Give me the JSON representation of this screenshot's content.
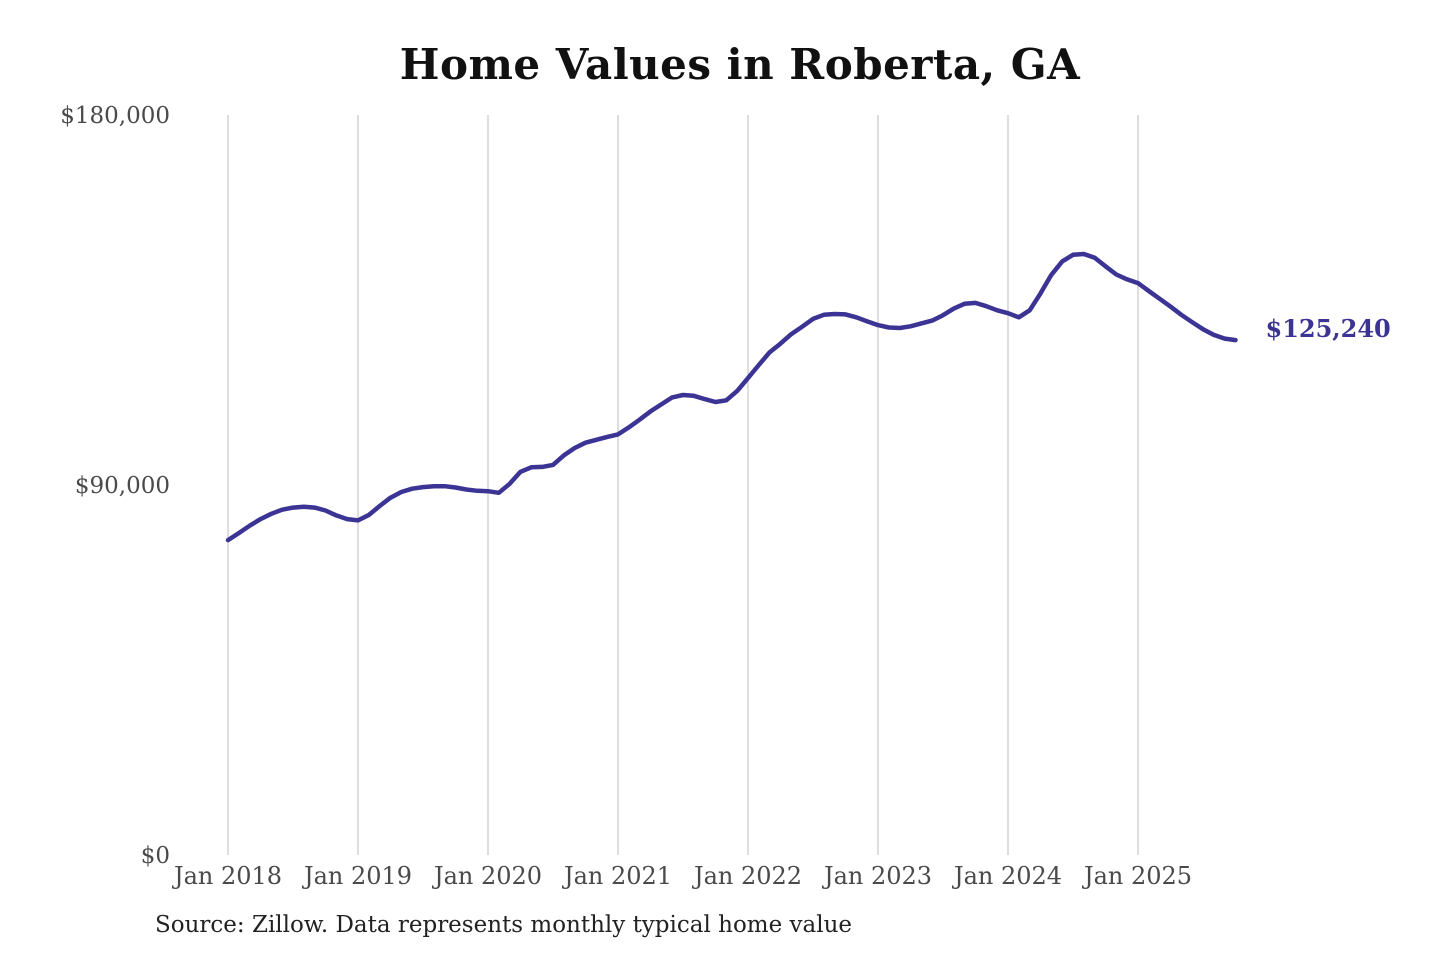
{
  "chart_data": {
    "type": "line",
    "title": "Home Values in Roberta, GA",
    "series_name": "Monthly typical home value",
    "x": [
      "2018-01",
      "2018-02",
      "2018-03",
      "2018-04",
      "2018-05",
      "2018-06",
      "2018-07",
      "2018-08",
      "2018-09",
      "2018-10",
      "2018-11",
      "2018-12",
      "2019-01",
      "2019-02",
      "2019-03",
      "2019-04",
      "2019-05",
      "2019-06",
      "2019-07",
      "2019-08",
      "2019-09",
      "2019-10",
      "2019-11",
      "2019-12",
      "2020-01",
      "2020-02",
      "2020-03",
      "2020-04",
      "2020-05",
      "2020-06",
      "2020-07",
      "2020-08",
      "2020-09",
      "2020-10",
      "2020-11",
      "2020-12",
      "2021-01",
      "2021-02",
      "2021-03",
      "2021-04",
      "2021-05",
      "2021-06",
      "2021-07",
      "2021-08",
      "2021-09",
      "2021-10",
      "2021-11",
      "2021-12",
      "2022-01",
      "2022-02",
      "2022-03",
      "2022-04",
      "2022-05",
      "2022-06",
      "2022-07",
      "2022-08",
      "2022-09",
      "2022-10",
      "2022-11",
      "2022-12",
      "2023-01",
      "2023-02",
      "2023-03",
      "2023-04",
      "2023-05",
      "2023-06",
      "2023-07",
      "2023-08",
      "2023-09",
      "2023-10",
      "2023-11",
      "2023-12",
      "2024-01",
      "2024-02",
      "2024-03",
      "2024-04",
      "2024-05",
      "2024-06",
      "2024-07",
      "2024-08",
      "2024-09",
      "2024-10",
      "2024-11",
      "2024-12",
      "2025-01",
      "2025-02",
      "2025-03",
      "2025-04",
      "2025-05",
      "2025-06",
      "2025-07",
      "2025-08",
      "2025-09",
      "2025-10"
    ],
    "values": [
      76600,
      78300,
      80100,
      81700,
      83000,
      84000,
      84500,
      84700,
      84500,
      83800,
      82600,
      81700,
      81400,
      82700,
      84900,
      86900,
      88300,
      89100,
      89500,
      89700,
      89700,
      89400,
      88900,
      88600,
      88500,
      88100,
      90300,
      93200,
      94300,
      94400,
      94900,
      97200,
      99000,
      100300,
      101000,
      101700,
      102300,
      104000,
      105900,
      107900,
      109600,
      111300,
      111900,
      111700,
      110900,
      110200,
      110600,
      112900,
      116000,
      119200,
      122300,
      124400,
      126700,
      128500,
      130400,
      131400,
      131600,
      131500,
      130800,
      129800,
      128900,
      128300,
      128200,
      128600,
      129300,
      130000,
      131300,
      132900,
      134100,
      134300,
      133500,
      132500,
      131800,
      130800,
      132500,
      136600,
      141100,
      144400,
      146000,
      146200,
      145300,
      143200,
      141200,
      140000,
      139100,
      137200,
      135300,
      133400,
      131400,
      129600,
      127900,
      126500,
      125600,
      125240
    ],
    "ylim": [
      0,
      180000
    ],
    "y_ticks": [
      {
        "value": 0,
        "label": "$0"
      },
      {
        "value": 90000,
        "label": "$90,000"
      },
      {
        "value": 180000,
        "label": "$180,000"
      }
    ],
    "x_ticks": [
      {
        "month_index": 0,
        "label": "Jan 2018"
      },
      {
        "month_index": 12,
        "label": "Jan 2019"
      },
      {
        "month_index": 24,
        "label": "Jan 2020"
      },
      {
        "month_index": 36,
        "label": "Jan 2021"
      },
      {
        "month_index": 48,
        "label": "Jan 2022"
      },
      {
        "month_index": 60,
        "label": "Jan 2023"
      },
      {
        "month_index": 72,
        "label": "Jan 2024"
      },
      {
        "month_index": 84,
        "label": "Jan 2025"
      }
    ],
    "grid": "vertical-only",
    "legend": "none",
    "end_label": "$125,240",
    "line_color": "#3c3494",
    "end_label_color": "#3c3494",
    "grid_color": "#cccccc",
    "axis_label_color": "#4a4a4a",
    "title_color": "#111111"
  },
  "source": {
    "text": "Source: Zillow. Data represents monthly typical home value"
  }
}
